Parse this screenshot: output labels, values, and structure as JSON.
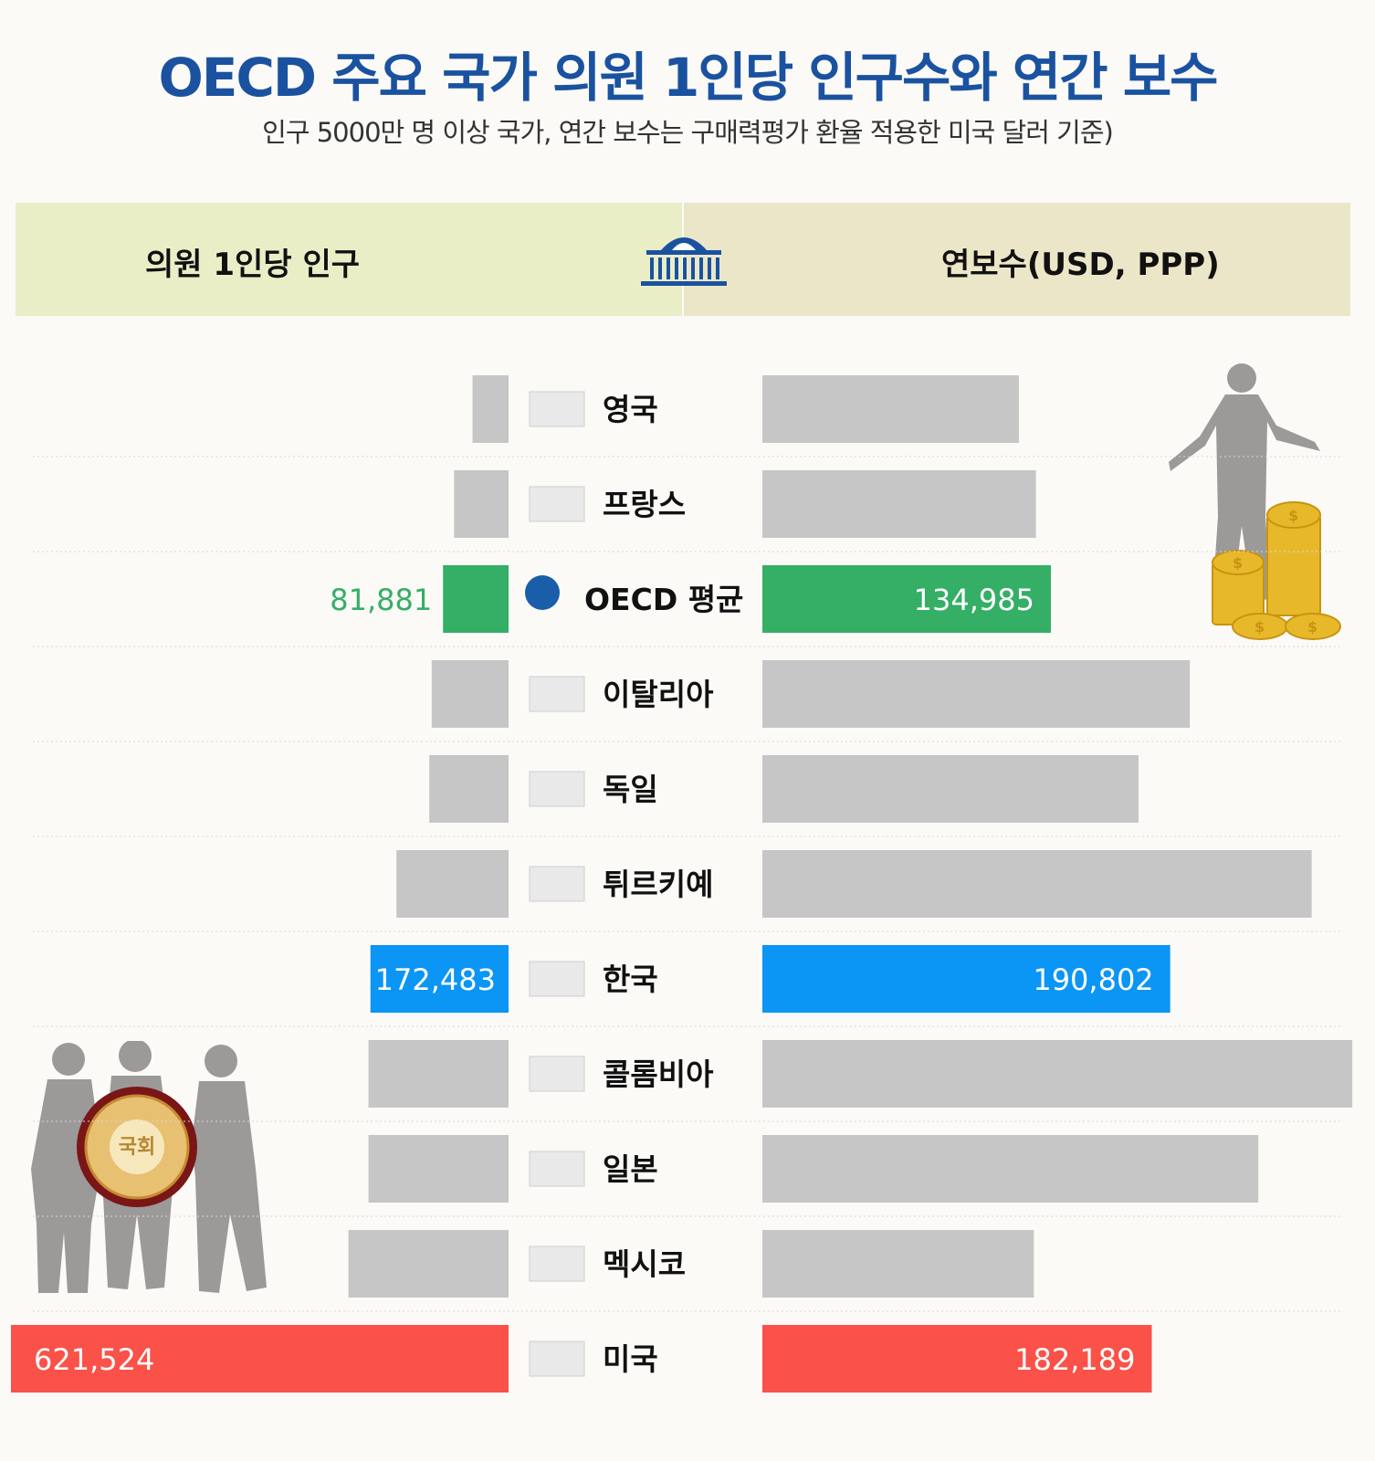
{
  "header": {
    "title": "OECD 주요 국가 의원 1인당 인구수와 연간 보수",
    "subtitle": "인구 5000만 명 이상 국가, 연간 보수는 구매력평가 환율 적용한 미국 달러 기준)",
    "left_label": "의원 1인당 인구",
    "right_label": "연보수(USD, PPP)"
  },
  "seal_text": "국회",
  "colors": {
    "title": "#1a52a0",
    "bar_default": "#c6c6c6",
    "oecd": "#35ae66",
    "korea": "#0b95f5",
    "usa": "#fa5149",
    "oecd_label": "#35ae66"
  },
  "chart_data": {
    "type": "bar",
    "orientation": "horizontal-butterfly",
    "categories": [
      "영국",
      "프랑스",
      "OECD 평균",
      "이탈리아",
      "독일",
      "튀르키예",
      "한국",
      "콜롬비아",
      "일본",
      "멕시코",
      "미국"
    ],
    "series": [
      {
        "name": "의원 1인당 인구",
        "values": [
          45000,
          68000,
          81881,
          96000,
          99000,
          140000,
          172483,
          175000,
          175000,
          200000,
          621524
        ],
        "labels": [
          "",
          "",
          "81,881",
          "",
          "",
          "",
          "172,483",
          "",
          "",
          "",
          "621,524"
        ]
      },
      {
        "name": "연보수(USD, PPP)",
        "values": [
          120000,
          128000,
          134985,
          200000,
          176000,
          257000,
          190802,
          276000,
          232000,
          127000,
          182189
        ],
        "labels": [
          "",
          "",
          "134,985",
          "",
          "",
          "",
          "190,802",
          "",
          "",
          "",
          "182,189"
        ]
      }
    ],
    "highlight": {
      "OECD 평균": "oecd",
      "한국": "korea",
      "미국": "usa"
    }
  }
}
